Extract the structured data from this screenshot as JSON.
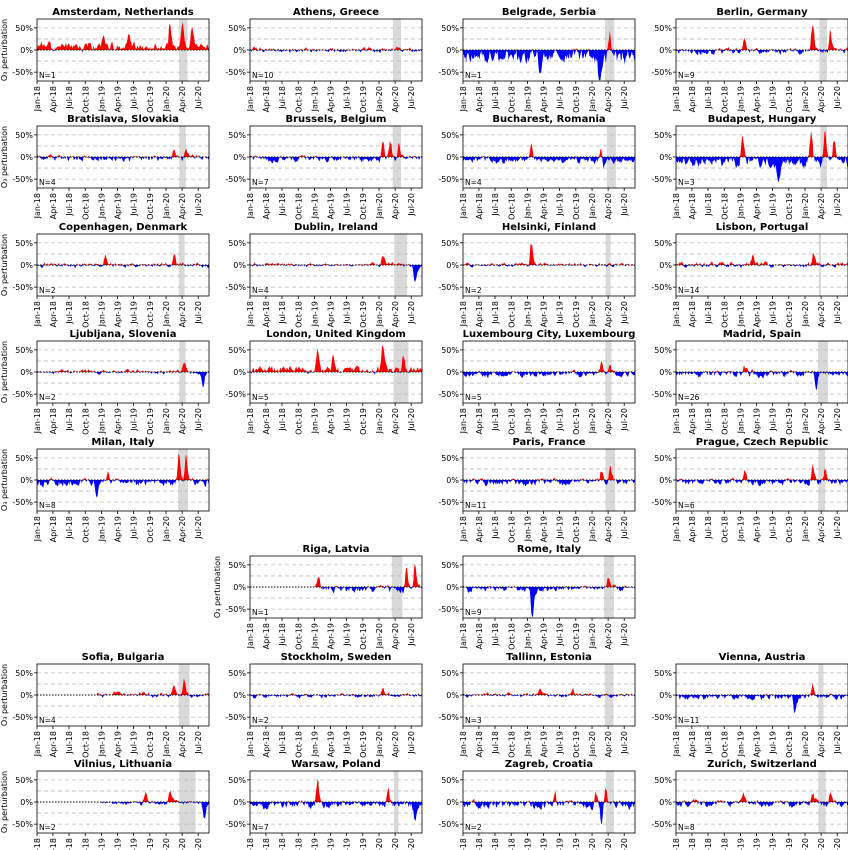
{
  "chart_data": {
    "type": "area",
    "layout": "small-multiples",
    "ylabel": "O₃ perturbation",
    "yticks": [
      "50%",
      "0%",
      "-50%"
    ],
    "ylim": [
      -0.7,
      0.7
    ],
    "xticks": [
      "Jan-18",
      "Apr-18",
      "Jul-18",
      "Oct-18",
      "Jan-19",
      "Apr-19",
      "Jul-19",
      "Oct-19",
      "Jan-20",
      "Apr-20",
      "Jul-20"
    ],
    "x_range": [
      "2018-01-01",
      "2020-08-31"
    ],
    "gridlines_y": [
      -0.5,
      -0.25,
      0.25,
      0.5
    ],
    "colors": {
      "positive": "#ff0000",
      "negative": "#0000ff",
      "lockdown_band": "#d9d9d9",
      "grid": "#bbbbbb"
    },
    "panels": [
      {
        "title": "Amsterdam, Netherlands",
        "n": "N=1",
        "row": 0,
        "col": 0,
        "lockdown": [
          "2020-03-15",
          "2020-05-01"
        ],
        "seed": 11,
        "bias": 0.03,
        "amp": 0.07,
        "spikes": [
          [
            "2019-01-10",
            0.22
          ],
          [
            "2019-06-01",
            0.18
          ],
          [
            "2020-01-20",
            0.4
          ],
          [
            "2020-04-01",
            0.4
          ],
          [
            "2020-05-25",
            0.3
          ]
        ]
      },
      {
        "title": "Athens, Greece",
        "n": "N=10",
        "row": 0,
        "col": 1,
        "lockdown": [
          "2020-03-20",
          "2020-05-04"
        ],
        "seed": 12,
        "bias": 0.0,
        "amp": 0.05,
        "spikes": []
      },
      {
        "title": "Belgrade, Serbia",
        "n": "N=1",
        "row": 0,
        "col": 2,
        "lockdown": [
          "2020-03-15",
          "2020-05-06"
        ],
        "seed": 13,
        "bias": -0.06,
        "amp": 0.12,
        "spikes": [
          [
            "2020-02-10",
            -0.6
          ],
          [
            "2020-04-10",
            0.4
          ],
          [
            "2019-03-10",
            -0.25
          ]
        ]
      },
      {
        "title": "Berlin, Germany",
        "n": "N=9",
        "row": 0,
        "col": 3,
        "lockdown": [
          "2020-03-22",
          "2020-05-04"
        ],
        "seed": 14,
        "bias": -0.01,
        "amp": 0.06,
        "spikes": [
          [
            "2020-02-10",
            0.52
          ],
          [
            "2020-05-20",
            0.3
          ],
          [
            "2019-01-20",
            0.2
          ]
        ]
      },
      {
        "title": "Bratislava, Slovakia",
        "n": "N=4",
        "row": 1,
        "col": 0,
        "lockdown": [
          "2020-03-16",
          "2020-04-22"
        ],
        "seed": 21,
        "bias": -0.01,
        "amp": 0.06,
        "spikes": [
          [
            "2020-02-15",
            0.2
          ],
          [
            "2020-04-20",
            0.15
          ]
        ]
      },
      {
        "title": "Brussels, Belgium",
        "n": "N=7",
        "row": 1,
        "col": 1,
        "lockdown": [
          "2020-03-18",
          "2020-05-04"
        ],
        "seed": 22,
        "bias": -0.02,
        "amp": 0.06,
        "spikes": [
          [
            "2020-01-20",
            0.3
          ],
          [
            "2020-03-01",
            0.3
          ],
          [
            "2020-04-20",
            0.3
          ]
        ]
      },
      {
        "title": "Bucharest, Romania",
        "n": "N=4",
        "row": 1,
        "col": 2,
        "lockdown": [
          "2020-03-25",
          "2020-05-15"
        ],
        "seed": 23,
        "bias": -0.03,
        "amp": 0.05,
        "spikes": [
          [
            "2019-01-20",
            0.25
          ],
          [
            "2020-03-01",
            -0.3
          ],
          [
            "2020-02-20",
            0.25
          ]
        ]
      },
      {
        "title": "Budapest, Hungary",
        "n": "N=3",
        "row": 1,
        "col": 3,
        "lockdown": [
          "2020-03-28",
          "2020-05-04"
        ],
        "seed": 24,
        "bias": -0.05,
        "amp": 0.08,
        "spikes": [
          [
            "2019-01-10",
            0.45
          ],
          [
            "2019-08-01",
            -0.3
          ],
          [
            "2020-02-01",
            0.5
          ],
          [
            "2020-04-20",
            0.5
          ],
          [
            "2020-06-10",
            0.45
          ]
        ]
      },
      {
        "title": "Copenhagen, Denmark",
        "n": "N=2",
        "row": 2,
        "col": 0,
        "lockdown": [
          "2020-03-13",
          "2020-04-15"
        ],
        "seed": 31,
        "bias": 0.0,
        "amp": 0.05,
        "spikes": [
          [
            "2019-01-20",
            0.2
          ],
          [
            "2020-02-15",
            0.15
          ]
        ]
      },
      {
        "title": "Dublin, Ireland",
        "n": "N=4",
        "row": 2,
        "col": 1,
        "lockdown": [
          "2020-03-27",
          "2020-06-08"
        ],
        "seed": 32,
        "bias": 0.0,
        "amp": 0.04,
        "spikes": [
          [
            "2020-01-20",
            0.2
          ],
          [
            "2020-07-20",
            -0.3
          ]
        ]
      },
      {
        "title": "Helsinki, Finland",
        "n": "N=2",
        "row": 2,
        "col": 2,
        "lockdown": [
          "2020-03-18",
          "2020-04-15"
        ],
        "seed": 33,
        "bias": 0.0,
        "amp": 0.04,
        "spikes": [
          [
            "2019-01-20",
            0.4
          ]
        ]
      },
      {
        "title": "Lisbon, Portugal",
        "n": "N=14",
        "row": 2,
        "col": 3,
        "lockdown": [
          "2020-03-19",
          "2020-03-31"
        ],
        "seed": 34,
        "bias": 0.0,
        "amp": 0.05,
        "spikes": [
          [
            "2019-03-10",
            0.2
          ],
          [
            "2020-02-15",
            0.2
          ]
        ]
      },
      {
        "title": "Ljubljana, Slovenia",
        "n": "N=2",
        "row": 3,
        "col": 0,
        "lockdown": [
          "2020-03-16",
          "2020-04-20"
        ],
        "seed": 41,
        "bias": 0.0,
        "amp": 0.04,
        "spikes": [
          [
            "2020-04-10",
            0.15
          ],
          [
            "2020-07-25",
            -0.3
          ]
        ]
      },
      {
        "title": "London, United Kingdom",
        "n": "N=5",
        "row": 3,
        "col": 1,
        "lockdown": [
          "2020-03-23",
          "2020-06-15"
        ],
        "seed": 42,
        "bias": 0.02,
        "amp": 0.06,
        "spikes": [
          [
            "2019-01-15",
            0.3
          ],
          [
            "2019-04-15",
            0.25
          ],
          [
            "2020-01-20",
            0.45
          ],
          [
            "2020-05-15",
            0.3
          ]
        ]
      },
      {
        "title": "Luxembourg City, Luxembourg",
        "n": "N=5",
        "row": 3,
        "col": 2,
        "lockdown": [
          "2020-03-16",
          "2020-04-20"
        ],
        "seed": 43,
        "bias": -0.02,
        "amp": 0.05,
        "spikes": [
          [
            "2020-02-20",
            0.2
          ],
          [
            "2020-04-10",
            0.2
          ]
        ]
      },
      {
        "title": "Madrid, Spain",
        "n": "N=26",
        "row": 3,
        "col": 3,
        "lockdown": [
          "2020-03-14",
          "2020-05-10"
        ],
        "seed": 44,
        "bias": -0.02,
        "amp": 0.06,
        "spikes": [
          [
            "2019-01-20",
            0.2
          ],
          [
            "2020-03-01",
            -0.3
          ]
        ]
      },
      {
        "title": "Milan, Italy",
        "n": "N=8",
        "row": 4,
        "col": 0,
        "lockdown": [
          "2020-03-09",
          "2020-05-04"
        ],
        "seed": 51,
        "bias": -0.02,
        "amp": 0.07,
        "spikes": [
          [
            "2019-02-01",
            0.2
          ],
          [
            "2018-12-01",
            -0.3
          ],
          [
            "2020-03-10",
            0.45
          ],
          [
            "2020-04-20",
            0.4
          ]
        ]
      },
      {
        "title": "Paris, France",
        "n": "N=11",
        "row": 4,
        "col": 2,
        "lockdown": [
          "2020-03-17",
          "2020-05-11"
        ],
        "seed": 53,
        "bias": -0.02,
        "amp": 0.06,
        "spikes": [
          [
            "2020-02-20",
            0.25
          ],
          [
            "2020-04-10",
            0.3
          ]
        ]
      },
      {
        "title": "Prague, Czech Republic",
        "n": "N=6",
        "row": 4,
        "col": 3,
        "lockdown": [
          "2020-03-16",
          "2020-04-24"
        ],
        "seed": 54,
        "bias": -0.02,
        "amp": 0.06,
        "spikes": [
          [
            "2019-01-20",
            0.25
          ],
          [
            "2020-02-10",
            0.3
          ],
          [
            "2020-04-20",
            0.25
          ]
        ]
      },
      {
        "title": "Riga, Latvia",
        "n": "N=1",
        "row": 5,
        "col": 1,
        "lockdown": [
          "2020-03-13",
          "2020-05-12"
        ],
        "seed": 62,
        "bias": -0.02,
        "amp": 0.06,
        "start": "2019-01-01",
        "spikes": [
          [
            "2019-01-20",
            0.2
          ],
          [
            "2020-06-01",
            0.4
          ],
          [
            "2020-07-20",
            0.45
          ]
        ]
      },
      {
        "title": "Rome, Italy",
        "n": "N=9",
        "row": 5,
        "col": 2,
        "lockdown": [
          "2020-03-09",
          "2020-05-04"
        ],
        "seed": 63,
        "bias": -0.02,
        "amp": 0.05,
        "spikes": [
          [
            "2019-01-25",
            -0.5
          ],
          [
            "2020-04-01",
            0.2
          ]
        ]
      },
      {
        "title": "Sofia, Bulgaria",
        "n": "N=4",
        "row": 6,
        "col": 0,
        "lockdown": [
          "2020-03-13",
          "2020-05-13"
        ],
        "seed": 71,
        "bias": 0.0,
        "amp": 0.05,
        "start": "2018-12-01",
        "spikes": [
          [
            "2020-02-10",
            0.2
          ],
          [
            "2020-04-10",
            0.3
          ]
        ]
      },
      {
        "title": "Stockholm, Sweden",
        "n": "N=2",
        "row": 6,
        "col": 1,
        "lockdown": [],
        "seed": 72,
        "bias": -0.01,
        "amp": 0.04,
        "spikes": [
          [
            "2020-01-20",
            0.15
          ]
        ]
      },
      {
        "title": "Tallinn, Estonia",
        "n": "N=3",
        "row": 6,
        "col": 2,
        "lockdown": [
          "2020-03-13",
          "2020-05-01"
        ],
        "seed": 73,
        "bias": 0.0,
        "amp": 0.04,
        "spikes": [
          [
            "2019-03-10",
            0.15
          ],
          [
            "2019-09-10",
            0.12
          ]
        ]
      },
      {
        "title": "Vienna, Austria",
        "n": "N=11",
        "row": 6,
        "col": 3,
        "lockdown": [
          "2020-03-16",
          "2020-04-14"
        ],
        "seed": 74,
        "bias": -0.02,
        "amp": 0.05,
        "spikes": [
          [
            "2020-02-10",
            0.2
          ],
          [
            "2019-11-01",
            -0.25
          ]
        ]
      },
      {
        "title": "Vilnius, Lithuania",
        "n": "N=2",
        "row": 7,
        "col": 0,
        "lockdown": [
          "2020-03-16",
          "2020-06-16"
        ],
        "seed": 81,
        "bias": -0.01,
        "amp": 0.04,
        "start": "2019-01-01",
        "spikes": [
          [
            "2019-09-01",
            0.2
          ],
          [
            "2020-01-20",
            0.2
          ],
          [
            "2020-08-01",
            -0.3
          ]
        ]
      },
      {
        "title": "Warsaw, Poland",
        "n": "N=7",
        "row": 7,
        "col": 1,
        "lockdown": [
          "2020-03-25",
          "2020-04-20"
        ],
        "seed": 82,
        "bias": -0.03,
        "amp": 0.06,
        "spikes": [
          [
            "2019-01-15",
            0.45
          ],
          [
            "2020-02-20",
            0.3
          ],
          [
            "2020-07-20",
            -0.3
          ]
        ]
      },
      {
        "title": "Zagreb, Croatia",
        "n": "N=2",
        "row": 7,
        "col": 2,
        "lockdown": [
          "2020-03-19",
          "2020-05-04"
        ],
        "seed": 83,
        "bias": -0.03,
        "amp": 0.07,
        "spikes": [
          [
            "2020-01-20",
            0.25
          ],
          [
            "2020-03-15",
            0.35
          ],
          [
            "2020-02-20",
            -0.4
          ],
          [
            "2019-06-01",
            0.2
          ]
        ]
      },
      {
        "title": "Zurich, Switzerland",
        "n": "N=8",
        "row": 7,
        "col": 3,
        "lockdown": [
          "2020-03-16",
          "2020-04-27"
        ],
        "seed": 84,
        "bias": -0.02,
        "amp": 0.06,
        "spikes": [
          [
            "2019-01-15",
            0.2
          ],
          [
            "2020-02-10",
            0.2
          ],
          [
            "2020-05-20",
            0.2
          ]
        ]
      }
    ]
  }
}
